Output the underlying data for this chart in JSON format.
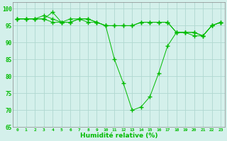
{
  "title": "",
  "xlabel": "Humidité relative (%)",
  "ylabel": "",
  "background_color": "#d4f0eb",
  "grid_color": "#b0d8d0",
  "line_color": "#00bb00",
  "marker_color": "#00bb00",
  "xlim": [
    -0.5,
    23.5
  ],
  "ylim": [
    65,
    102
  ],
  "yticks": [
    65,
    70,
    75,
    80,
    85,
    90,
    95,
    100
  ],
  "xticks": [
    0,
    1,
    2,
    3,
    4,
    5,
    6,
    7,
    8,
    9,
    10,
    11,
    12,
    13,
    14,
    15,
    16,
    17,
    18,
    19,
    20,
    21,
    22,
    23
  ],
  "series": [
    [
      97,
      97,
      97,
      97,
      99,
      96,
      97,
      97,
      97,
      96,
      95,
      85,
      78,
      70,
      71,
      74,
      81,
      89,
      93,
      93,
      92,
      92,
      95,
      96
    ],
    [
      97,
      97,
      97,
      97,
      96,
      96,
      96,
      97,
      96,
      96,
      95,
      95,
      95,
      95,
      96,
      96,
      96,
      96,
      93,
      93,
      93,
      92,
      95,
      96
    ],
    [
      97,
      97,
      97,
      98,
      97,
      96,
      96,
      97,
      97,
      96,
      95,
      95,
      95,
      95,
      96,
      96,
      96,
      96,
      93,
      93,
      93,
      92,
      95,
      96
    ]
  ]
}
